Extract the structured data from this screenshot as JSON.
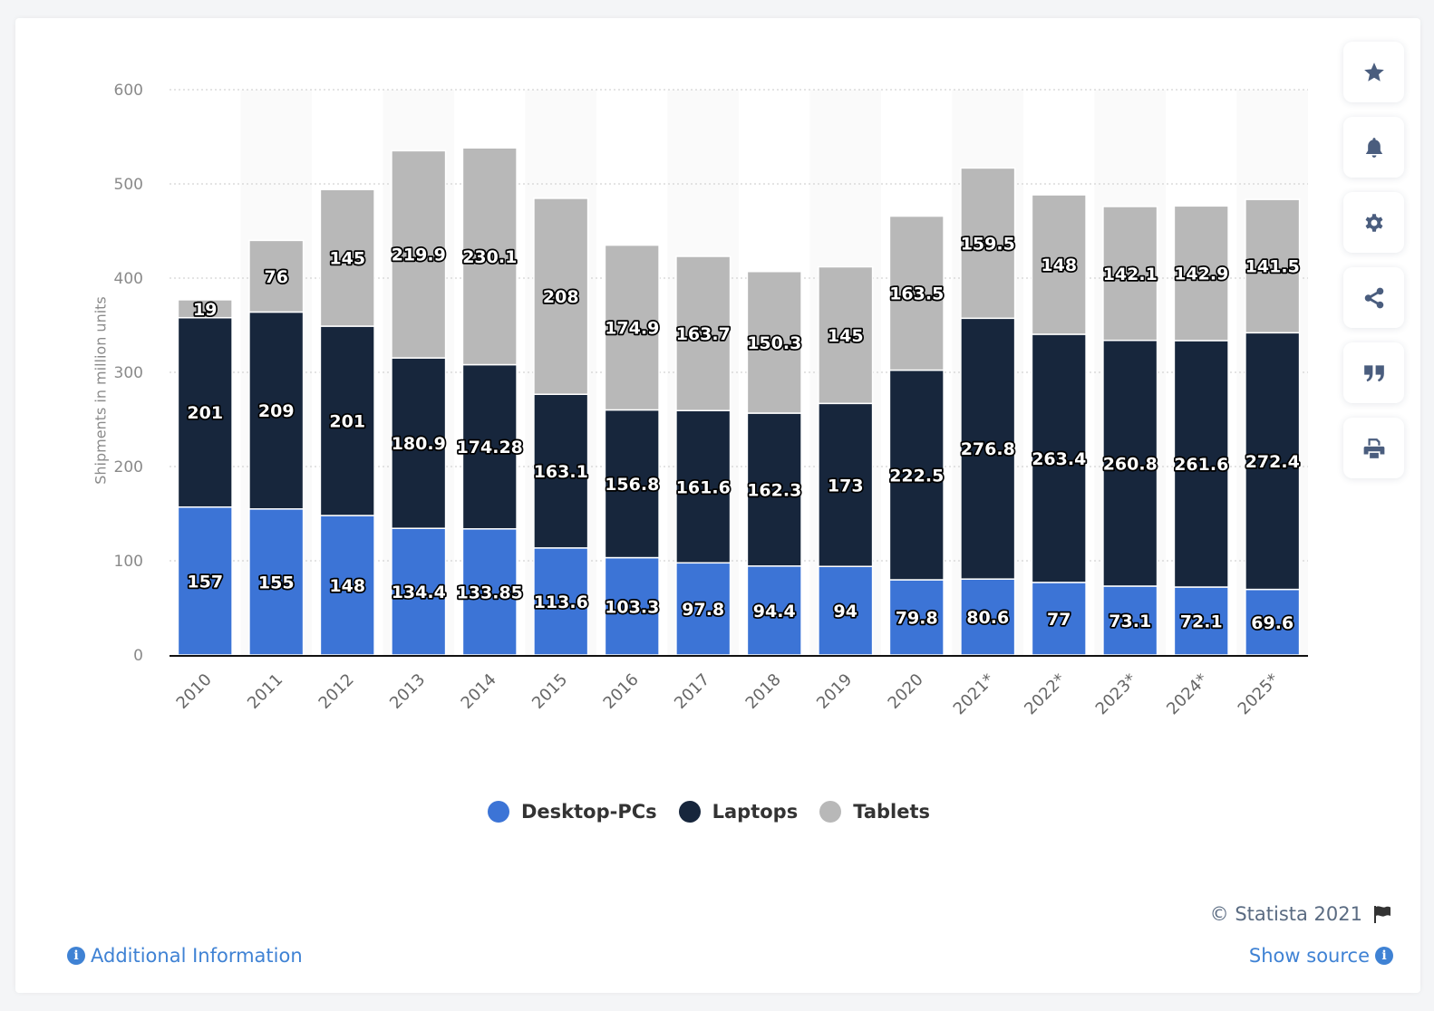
{
  "chart_data": {
    "type": "bar",
    "stacked": true,
    "title": "",
    "xlabel": "",
    "ylabel": "Shipments in million units",
    "ylim": [
      0,
      600
    ],
    "yticks": [
      0,
      100,
      200,
      300,
      400,
      500,
      600
    ],
    "grid": true,
    "legend_position": "bottom",
    "categories": [
      "2010",
      "2011",
      "2012",
      "2013",
      "2014",
      "2015",
      "2016",
      "2017",
      "2018",
      "2019",
      "2020",
      "2021*",
      "2022*",
      "2023*",
      "2024*",
      "2025*"
    ],
    "series": [
      {
        "name": "Desktop-PCs",
        "color": "#3c74d6",
        "values": [
          157,
          155,
          148,
          134.4,
          133.85,
          113.6,
          103.3,
          97.8,
          94.4,
          94,
          79.8,
          80.6,
          77,
          73.1,
          72.1,
          69.6
        ],
        "labels": [
          "157",
          "155",
          "148",
          "134.4",
          "133.85",
          "113.6",
          "103.3",
          "97.8",
          "94.4",
          "94",
          "79.8",
          "80.6",
          "77",
          "73.1",
          "72.1",
          "69.6"
        ]
      },
      {
        "name": "Laptops",
        "color": "#17263c",
        "values": [
          201,
          209,
          201,
          180.9,
          174.28,
          163.1,
          156.8,
          161.6,
          162.3,
          173,
          222.5,
          276.8,
          263.4,
          260.8,
          261.6,
          272.4
        ],
        "labels": [
          "201",
          "209",
          "201",
          "180.9",
          "174.28",
          "163.1",
          "156.8",
          "161.6",
          "162.3",
          "173",
          "222.5",
          "276.8",
          "263.4",
          "260.8",
          "261.6",
          "272.4"
        ]
      },
      {
        "name": "Tablets",
        "color": "#b8b8b8",
        "values": [
          19,
          76,
          145,
          219.9,
          230.1,
          208,
          174.9,
          163.7,
          150.3,
          145,
          163.5,
          159.5,
          148,
          142.1,
          142.9,
          141.5
        ],
        "labels": [
          "19",
          "76",
          "145",
          "219.9",
          "230.1",
          "208",
          "174.9",
          "163.7",
          "150.3",
          "145",
          "163.5",
          "159.5",
          "148",
          "142.1",
          "142.9",
          "141.5"
        ]
      }
    ]
  },
  "legend": {
    "items": [
      {
        "label": "Desktop-PCs",
        "color": "#3c74d6"
      },
      {
        "label": "Laptops",
        "color": "#17263c"
      },
      {
        "label": "Tablets",
        "color": "#b8b8b8"
      }
    ]
  },
  "toolbar": {
    "buttons": [
      {
        "name": "favorite",
        "icon": "star-icon"
      },
      {
        "name": "notification",
        "icon": "bell-icon"
      },
      {
        "name": "settings",
        "icon": "gear-icon"
      },
      {
        "name": "share",
        "icon": "share-icon"
      },
      {
        "name": "cite",
        "icon": "quote-icon"
      },
      {
        "name": "print",
        "icon": "print-icon"
      }
    ]
  },
  "footer": {
    "copyright": "© Statista 2021",
    "additional_info": "Additional Information",
    "show_source": "Show source",
    "info_glyph": "i"
  }
}
